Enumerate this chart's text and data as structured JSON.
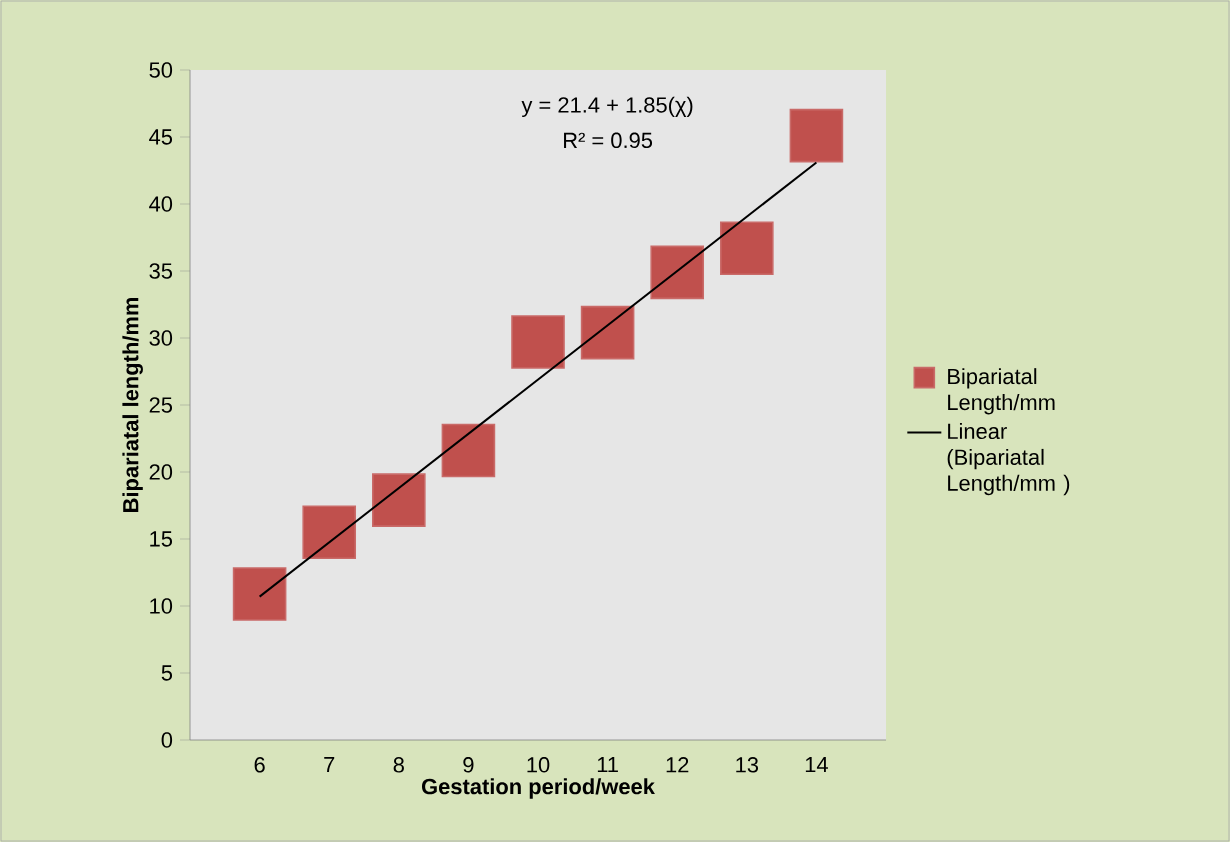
{
  "chart_data": {
    "type": "scatter",
    "xlabel": "Gestation period/week",
    "ylabel": "Bipariatal length/mm",
    "categories": [
      "6",
      "7",
      "8",
      "9",
      "10",
      "11",
      "12",
      "13",
      "14"
    ],
    "ylim": [
      0,
      50
    ],
    "yticks": [
      0,
      5,
      10,
      15,
      20,
      25,
      30,
      35,
      40,
      45,
      50
    ],
    "series": [
      {
        "name": "Bipariatal Length/mm",
        "marker": "square",
        "color": "#c0504d",
        "values": [
          10.9,
          15.5,
          17.9,
          21.6,
          29.7,
          30.4,
          34.9,
          36.7,
          45.1
        ]
      },
      {
        "name": "Linear (Bipariatal Length/mm )",
        "type": "line",
        "marker": "none",
        "color": "#000000",
        "x": [
          "6",
          "14"
        ],
        "values": [
          10.7,
          43.1
        ]
      }
    ],
    "annotations": [
      "y = 21.4 + 1.85(χ)",
      "R² = 0.95"
    ],
    "legend": "right",
    "grid": false
  }
}
